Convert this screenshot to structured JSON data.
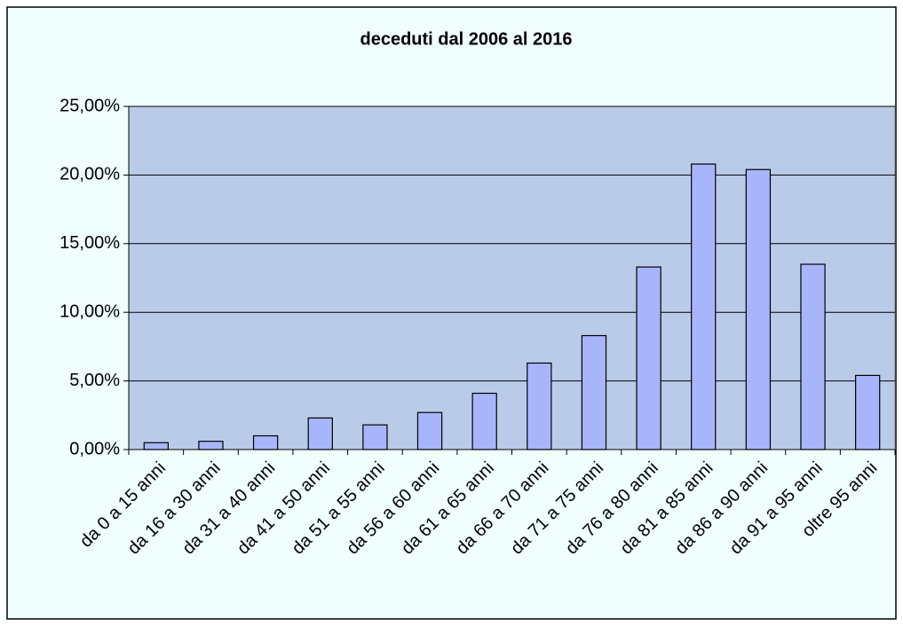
{
  "chart_data": {
    "type": "bar",
    "title": "deceduti dal 2006 al 2016",
    "categories": [
      "da 0 a 15 anni",
      "da 16 a 30 anni",
      "da 31 a 40 anni",
      "da 41 a 50 anni",
      "da 51 a 55 anni",
      "da 56 a 60 anni",
      "da 61 a 65 anni",
      "da 66 a 70 anni",
      "da 71 a 75 anni",
      "da 76 a 80 anni",
      "da 81 a 85 anni",
      "da 86 a 90 anni",
      "da 91 a 95 anni",
      "oltre 95 anni"
    ],
    "values": [
      0.5,
      0.6,
      1.0,
      2.3,
      1.8,
      2.7,
      4.1,
      6.3,
      8.3,
      13.3,
      20.8,
      20.4,
      13.5,
      5.4
    ],
    "color": "#a9b5fb",
    "ylim": [
      0,
      25
    ],
    "yticks": [
      {
        "value": 0,
        "label": "0,00%"
      },
      {
        "value": 5,
        "label": "5,00%"
      },
      {
        "value": 10,
        "label": "10,00%"
      },
      {
        "value": 15,
        "label": "15,00%"
      },
      {
        "value": 20,
        "label": "20,00%"
      },
      {
        "value": 25,
        "label": "25,00%"
      }
    ],
    "grid": true
  }
}
